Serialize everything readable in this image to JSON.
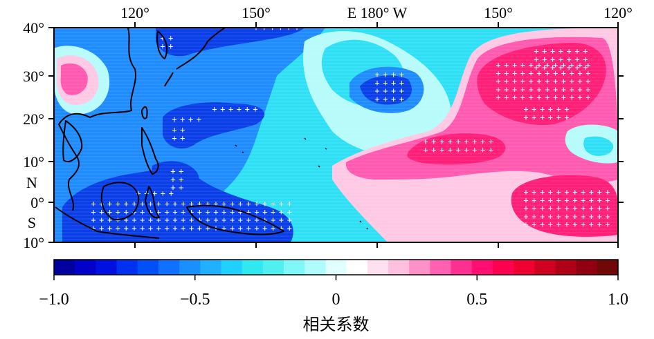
{
  "map": {
    "top_labels": [
      "120°",
      "150°",
      "E 180° W",
      "150°",
      "120°"
    ],
    "left_labels": [
      "40°",
      "30°",
      "20°",
      "10°",
      "N",
      "0°",
      "S",
      "10°"
    ]
  },
  "colorbar": {
    "ticks": [
      "−1.0",
      "−0.5",
      "0",
      "0.5",
      "1.0"
    ],
    "title": "相关系数",
    "range": [
      -1.0,
      1.0
    ],
    "palette": [
      "#0000a0",
      "#0000c8",
      "#0010e0",
      "#0030f0",
      "#0050f8",
      "#1070ff",
      "#1890ff",
      "#20b0ff",
      "#20d0ff",
      "#30e8f0",
      "#50f0f0",
      "#80f8f8",
      "#b0fcfc",
      "#e0ffff",
      "#ffffff",
      "#ffe0f0",
      "#ffc0e0",
      "#ff90c8",
      "#ff60b0",
      "#ff3090",
      "#ff1070",
      "#ff0050",
      "#f00030",
      "#d00020",
      "#b00018",
      "#900010",
      "#700808"
    ]
  },
  "colors": {
    "deep_blue": "#0a3fe8",
    "mid_blue": "#1e8cff",
    "cyan": "#2fe0f5",
    "light_cyan": "#b8fbfb",
    "pale_pink": "#ffc8e4",
    "pink": "#ff5ab0",
    "magenta": "#ff1e78"
  }
}
